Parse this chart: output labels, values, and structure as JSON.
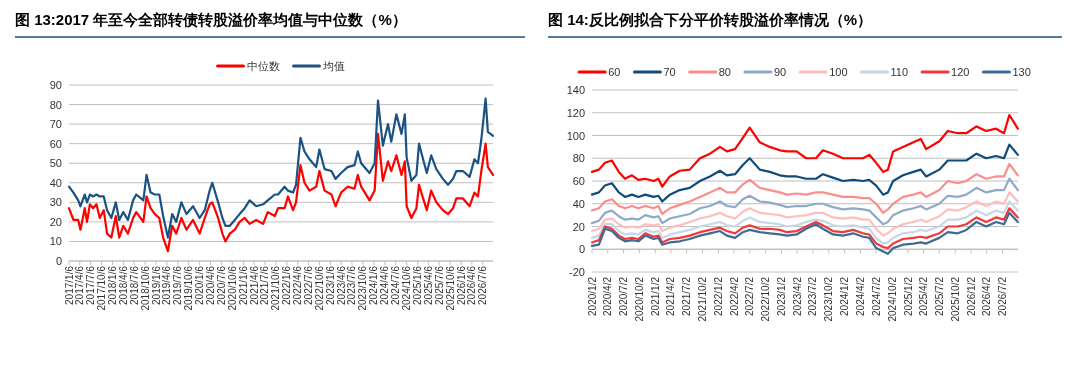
{
  "chart_data": [
    {
      "type": "line",
      "title": "图 13:2017 年至今全部转债转股溢价率均值与中位数（%）",
      "legend": "top",
      "grid": "y",
      "ylim": [
        0,
        90
      ],
      "yticks": [
        0,
        10,
        20,
        30,
        40,
        50,
        60,
        70,
        80,
        90
      ],
      "xlim": [
        "2017-01-06",
        "2026-09-30"
      ],
      "xticks": [
        {
          "value": "2017-01-06",
          "label": "2017/1/6"
        },
        {
          "value": "2017-04-06",
          "label": "2017/4/6"
        },
        {
          "value": "2017-07-06",
          "label": "2017/7/6"
        },
        {
          "value": "2017-10-06",
          "label": "2017/10/6"
        },
        {
          "value": "2018-01-06",
          "label": "2018/1/6"
        },
        {
          "value": "2018-04-06",
          "label": "2018/4/6"
        },
        {
          "value": "2018-07-06",
          "label": "2018/7/6"
        },
        {
          "value": "2018-10-06",
          "label": "2018/10/6"
        },
        {
          "value": "2019-01-06",
          "label": "2019/1/6"
        },
        {
          "value": "2019-04-06",
          "label": "2019/4/6"
        },
        {
          "value": "2019-07-06",
          "label": "2019/7/6"
        },
        {
          "value": "2019-10-06",
          "label": "2019/10/6"
        },
        {
          "value": "2020-01-06",
          "label": "2020/1/6"
        },
        {
          "value": "2020-04-06",
          "label": "2020/4/6"
        },
        {
          "value": "2020-07-06",
          "label": "2020/7/6"
        },
        {
          "value": "2020-10-06",
          "label": "2020/10/6"
        },
        {
          "value": "2021-01-06",
          "label": "2021/1/6"
        },
        {
          "value": "2021-04-06",
          "label": "2021/4/6"
        },
        {
          "value": "2021-07-06",
          "label": "2021/7/6"
        },
        {
          "value": "2021-10-06",
          "label": "2021/10/6"
        },
        {
          "value": "2022-01-06",
          "label": "2022/1/6"
        },
        {
          "value": "2022-04-06",
          "label": "2022/4/6"
        },
        {
          "value": "2022-07-06",
          "label": "2022/7/6"
        },
        {
          "value": "2022-10-06",
          "label": "2022/10/6"
        },
        {
          "value": "2023-01-06",
          "label": "2023/1/6"
        },
        {
          "value": "2023-04-06",
          "label": "2023/4/6"
        },
        {
          "value": "2023-07-06",
          "label": "2023/7/6"
        },
        {
          "value": "2023-10-06",
          "label": "2023/10/6"
        },
        {
          "value": "2024-01-06",
          "label": "2024/1/6"
        },
        {
          "value": "2024-04-06",
          "label": "2024/4/6"
        },
        {
          "value": "2024-07-06",
          "label": "2024/7/6"
        },
        {
          "value": "2024-10-06",
          "label": "2024/10/6"
        },
        {
          "value": "2025-01-06",
          "label": "2025/1/6"
        },
        {
          "value": "2025-04-06",
          "label": "2025/4/6"
        },
        {
          "value": "2025-07-06",
          "label": "2025/7/6"
        },
        {
          "value": "2025-10-06",
          "label": "2025/10/6"
        },
        {
          "value": "2026-01-06",
          "label": "2026/1/6"
        },
        {
          "value": "2026-04-06",
          "label": "2026/4/6"
        },
        {
          "value": "2026-07-06",
          "label": "2026/7/6"
        }
      ],
      "x": [
        "2017-01-06",
        "2017-02-12",
        "2017-03-24",
        "2017-04-12",
        "2017-05-18",
        "2017-06-06",
        "2017-06-30",
        "2017-07-27",
        "2017-08-24",
        "2017-09-21",
        "2017-10-24",
        "2017-11-21",
        "2017-12-27",
        "2018-02-02",
        "2018-03-03",
        "2018-04-06",
        "2018-05-15",
        "2018-06-27",
        "2018-07-24",
        "2018-09-21",
        "2018-10-18",
        "2018-11-21",
        "2018-12-27",
        "2019-02-02",
        "2019-03-06",
        "2019-04-15",
        "2019-05-21",
        "2019-06-24",
        "2019-08-06",
        "2019-09-18",
        "2019-11-12",
        "2020-01-06",
        "2020-02-18",
        "2020-03-30",
        "2020-04-21",
        "2020-06-09",
        "2020-07-15",
        "2020-08-09",
        "2020-09-15",
        "2020-10-27",
        "2020-12-06",
        "2021-01-18",
        "2021-02-28",
        "2021-04-24",
        "2021-06-21",
        "2021-07-30",
        "2021-09-27",
        "2021-10-24",
        "2021-12-18",
        "2022-01-15",
        "2022-02-27",
        "2022-03-24",
        "2022-04-30",
        "2022-06-03",
        "2022-07-15",
        "2022-09-09",
        "2022-10-06",
        "2022-11-18",
        "2023-01-15",
        "2023-02-18",
        "2023-04-06",
        "2023-05-30",
        "2023-07-27",
        "2023-08-24",
        "2023-09-21",
        "2023-11-30",
        "2024-01-12",
        "2024-02-09",
        "2024-03-21",
        "2024-05-03",
        "2024-05-30",
        "2024-07-12",
        "2024-08-24",
        "2024-09-21",
        "2024-10-06",
        "2024-11-15",
        "2024-12-27",
        "2025-01-18",
        "2025-02-21",
        "2025-03-24",
        "2025-04-30",
        "2025-06-12",
        "2025-08-06",
        "2025-09-18",
        "2025-10-30",
        "2025-11-27",
        "2026-01-21",
        "2026-03-18",
        "2026-04-27",
        "2026-05-27",
        "2026-06-24",
        "2026-07-30",
        "2026-08-18",
        "2026-09-30"
      ],
      "series": [
        {
          "name": "中位数",
          "color": "#ff0000",
          "values": [
            27,
            21,
            21,
            16,
            27,
            20,
            29,
            27,
            29,
            22,
            26,
            14,
            12,
            23,
            12,
            18,
            14,
            22,
            25,
            20,
            33,
            27,
            24,
            22,
            12,
            5,
            18,
            14,
            22,
            16,
            21,
            14,
            22,
            29,
            30,
            22,
            14,
            10,
            14,
            16,
            20,
            22,
            19,
            21,
            19,
            25,
            23,
            27,
            27,
            33,
            26,
            30,
            49,
            40,
            36,
            38,
            46,
            36,
            34,
            28,
            35,
            38,
            37,
            44,
            38,
            31,
            36,
            65,
            41,
            51,
            46,
            54,
            44,
            51,
            28,
            22,
            27,
            39,
            32,
            26,
            36,
            30,
            26,
            24,
            27,
            32,
            32,
            28,
            35,
            33,
            46,
            60,
            48,
            44
          ]
        },
        {
          "name": "均值",
          "color": "#1a5283",
          "values": [
            38,
            35,
            31,
            28,
            34,
            30,
            34,
            33,
            34,
            33,
            33,
            26,
            22,
            30,
            21,
            25,
            21,
            31,
            34,
            31,
            44,
            35,
            34,
            34,
            23,
            12,
            24,
            20,
            30,
            24,
            28,
            22,
            26,
            36,
            40,
            30,
            22,
            18,
            18,
            21,
            24,
            27,
            31,
            28,
            29,
            31,
            34,
            34,
            38,
            36,
            35,
            39,
            63,
            56,
            52,
            48,
            57,
            47,
            46,
            42,
            45,
            48,
            49,
            56,
            50,
            45,
            50,
            82,
            59,
            70,
            61,
            75,
            65,
            75,
            53,
            41,
            44,
            60,
            52,
            45,
            54,
            47,
            42,
            39,
            42,
            46,
            46,
            43,
            52,
            50,
            62,
            83,
            66,
            64
          ]
        }
      ]
    },
    {
      "type": "line",
      "title": "图 14:反比例拟合下分平价转股溢价率情况（%）",
      "legend": "top",
      "grid": "y",
      "ylim": [
        -20,
        140
      ],
      "yticks": [
        -20,
        0,
        20,
        40,
        60,
        80,
        100,
        120,
        140
      ],
      "xlim": [
        "2020-01-02",
        "2026-09-30"
      ],
      "xticks": [
        {
          "value": "2020-01-02",
          "label": "2020/1/2"
        },
        {
          "value": "2020-04-02",
          "label": "2020/4/2"
        },
        {
          "value": "2020-07-02",
          "label": "2020/7/2"
        },
        {
          "value": "2020-10-02",
          "label": "2020/10/2"
        },
        {
          "value": "2021-01-02",
          "label": "2021/1/2"
        },
        {
          "value": "2021-04-02",
          "label": "2021/4/2"
        },
        {
          "value": "2021-07-02",
          "label": "2021/7/2"
        },
        {
          "value": "2021-10-02",
          "label": "2021/10/2"
        },
        {
          "value": "2022-01-02",
          "label": "2022/1/2"
        },
        {
          "value": "2022-04-02",
          "label": "2022/4/2"
        },
        {
          "value": "2022-07-02",
          "label": "2022/7/2"
        },
        {
          "value": "2022-10-02",
          "label": "2022/10/2"
        },
        {
          "value": "2023-01-02",
          "label": "2023/1/2"
        },
        {
          "value": "2023-04-02",
          "label": "2023/4/2"
        },
        {
          "value": "2023-07-02",
          "label": "2023/7/2"
        },
        {
          "value": "2023-10-02",
          "label": "2023/10/2"
        },
        {
          "value": "2024-01-02",
          "label": "2024/1/2"
        },
        {
          "value": "2024-04-02",
          "label": "2024/4/2"
        },
        {
          "value": "2024-07-02",
          "label": "2024/7/2"
        },
        {
          "value": "2024-10-02",
          "label": "2024/10/2"
        },
        {
          "value": "2025-01-02",
          "label": "2025/1/2"
        },
        {
          "value": "2025-04-02",
          "label": "2025/4/2"
        },
        {
          "value": "2025-07-02",
          "label": "2025/7/2"
        },
        {
          "value": "2025-10-02",
          "label": "2025/10/2"
        },
        {
          "value": "2026-01-02",
          "label": "2026/1/2"
        },
        {
          "value": "2026-04-02",
          "label": "2026/4/2"
        },
        {
          "value": "2026-07-02",
          "label": "2026/7/2"
        }
      ],
      "x": [
        "2020-01-02",
        "2020-02-11",
        "2020-03-17",
        "2020-04-26",
        "2020-06-05",
        "2020-07-11",
        "2020-08-20",
        "2020-09-26",
        "2020-11-05",
        "2020-12-23",
        "2021-01-20",
        "2021-02-11",
        "2021-03-27",
        "2021-05-23",
        "2021-07-20",
        "2021-09-17",
        "2021-11-14",
        "2022-01-11",
        "2022-02-20",
        "2022-04-08",
        "2022-05-23",
        "2022-07-02",
        "2022-08-29",
        "2022-10-26",
        "2022-12-23",
        "2023-02-02",
        "2023-03-30",
        "2023-05-24",
        "2023-07-20",
        "2023-08-29",
        "2023-10-26",
        "2023-12-23",
        "2024-02-20",
        "2024-04-17",
        "2024-05-23",
        "2024-07-02",
        "2024-08-11",
        "2024-09-08",
        "2024-10-08",
        "2024-12-04",
        "2025-02-02",
        "2025-03-17",
        "2025-04-17",
        "2025-07-02",
        "2025-08-20",
        "2025-10-17",
        "2025-12-05",
        "2026-02-02",
        "2026-03-30",
        "2026-05-26",
        "2026-07-11",
        "2026-08-11",
        "2026-09-29"
      ],
      "series": [
        {
          "name": "60",
          "color": "#ff0000",
          "values": [
            68,
            70,
            76,
            78,
            68,
            62,
            65,
            61,
            62,
            60,
            62,
            55,
            64,
            69,
            70,
            80,
            84,
            90,
            86,
            88,
            98,
            107,
            94,
            90,
            87,
            86,
            86,
            80,
            80,
            87,
            84,
            80,
            80,
            80,
            83,
            76,
            68,
            70,
            86,
            90,
            94,
            97,
            88,
            95,
            104,
            102,
            102,
            108,
            104,
            106,
            102,
            118,
            106
          ]
        },
        {
          "name": "70",
          "color": "#0f4c7c",
          "values": [
            48,
            50,
            56,
            58,
            50,
            46,
            48,
            46,
            48,
            46,
            47,
            42,
            48,
            52,
            54,
            60,
            64,
            69,
            65,
            66,
            74,
            80,
            70,
            68,
            65,
            64,
            64,
            62,
            62,
            66,
            63,
            60,
            61,
            60,
            61,
            56,
            48,
            50,
            60,
            65,
            68,
            70,
            64,
            70,
            78,
            78,
            78,
            84,
            80,
            82,
            80,
            92,
            83
          ]
        },
        {
          "name": "80",
          "color": "#ff8c8c",
          "values": [
            34,
            36,
            42,
            44,
            38,
            36,
            38,
            36,
            38,
            36,
            38,
            31,
            36,
            39,
            42,
            46,
            50,
            54,
            50,
            50,
            57,
            61,
            54,
            52,
            50,
            48,
            49,
            48,
            50,
            50,
            48,
            46,
            46,
            45,
            45,
            40,
            32,
            35,
            40,
            46,
            48,
            50,
            46,
            52,
            60,
            58,
            60,
            66,
            62,
            64,
            64,
            75,
            65
          ]
        },
        {
          "name": "90",
          "color": "#8eaac6",
          "values": [
            23,
            25,
            32,
            34,
            29,
            26,
            27,
            26,
            30,
            28,
            29,
            23,
            27,
            29,
            31,
            36,
            38,
            42,
            38,
            37,
            44,
            47,
            42,
            41,
            39,
            37,
            38,
            38,
            40,
            40,
            37,
            35,
            36,
            35,
            34,
            28,
            22,
            24,
            30,
            34,
            36,
            38,
            35,
            40,
            47,
            46,
            48,
            54,
            50,
            52,
            52,
            62,
            52
          ]
        },
        {
          "name": "100",
          "color": "#ffbdbd",
          "values": [
            16,
            18,
            26,
            27,
            22,
            19,
            20,
            19,
            22,
            21,
            22,
            16,
            19,
            21,
            24,
            27,
            29,
            32,
            29,
            27,
            33,
            36,
            32,
            31,
            30,
            28,
            29,
            30,
            32,
            32,
            28,
            27,
            28,
            26,
            26,
            18,
            12,
            14,
            18,
            22,
            24,
            26,
            24,
            29,
            35,
            34,
            37,
            42,
            38,
            42,
            40,
            50,
            42
          ]
        },
        {
          "name": "110",
          "color": "#c6d7e6",
          "values": [
            10,
            12,
            22,
            22,
            16,
            13,
            14,
            13,
            17,
            15,
            16,
            10,
            13,
            15,
            17,
            20,
            22,
            24,
            21,
            20,
            25,
            28,
            24,
            23,
            22,
            20,
            21,
            24,
            26,
            25,
            21,
            20,
            21,
            19,
            18,
            10,
            5,
            6,
            10,
            14,
            15,
            17,
            16,
            20,
            26,
            26,
            28,
            34,
            30,
            34,
            32,
            42,
            34
          ]
        },
        {
          "name": "120",
          "color": "#f03a3a",
          "values": [
            6,
            8,
            20,
            18,
            12,
            9,
            10,
            9,
            14,
            11,
            12,
            6,
            9,
            10,
            12,
            15,
            17,
            19,
            16,
            14,
            19,
            21,
            18,
            18,
            17,
            15,
            16,
            20,
            24,
            21,
            16,
            15,
            17,
            14,
            13,
            5,
            2,
            1,
            5,
            9,
            10,
            11,
            10,
            14,
            20,
            20,
            22,
            28,
            24,
            28,
            26,
            36,
            28
          ]
        },
        {
          "name": "130",
          "color": "#3d6b93",
          "values": [
            3,
            4,
            18,
            16,
            10,
            7,
            8,
            7,
            12,
            9,
            10,
            4,
            6,
            7,
            9,
            12,
            14,
            16,
            12,
            10,
            15,
            17,
            15,
            14,
            13,
            12,
            13,
            18,
            22,
            18,
            13,
            12,
            14,
            11,
            10,
            1,
            -2,
            -4,
            1,
            4,
            5,
            6,
            5,
            10,
            15,
            14,
            17,
            24,
            20,
            24,
            22,
            32,
            24
          ]
        }
      ]
    }
  ]
}
